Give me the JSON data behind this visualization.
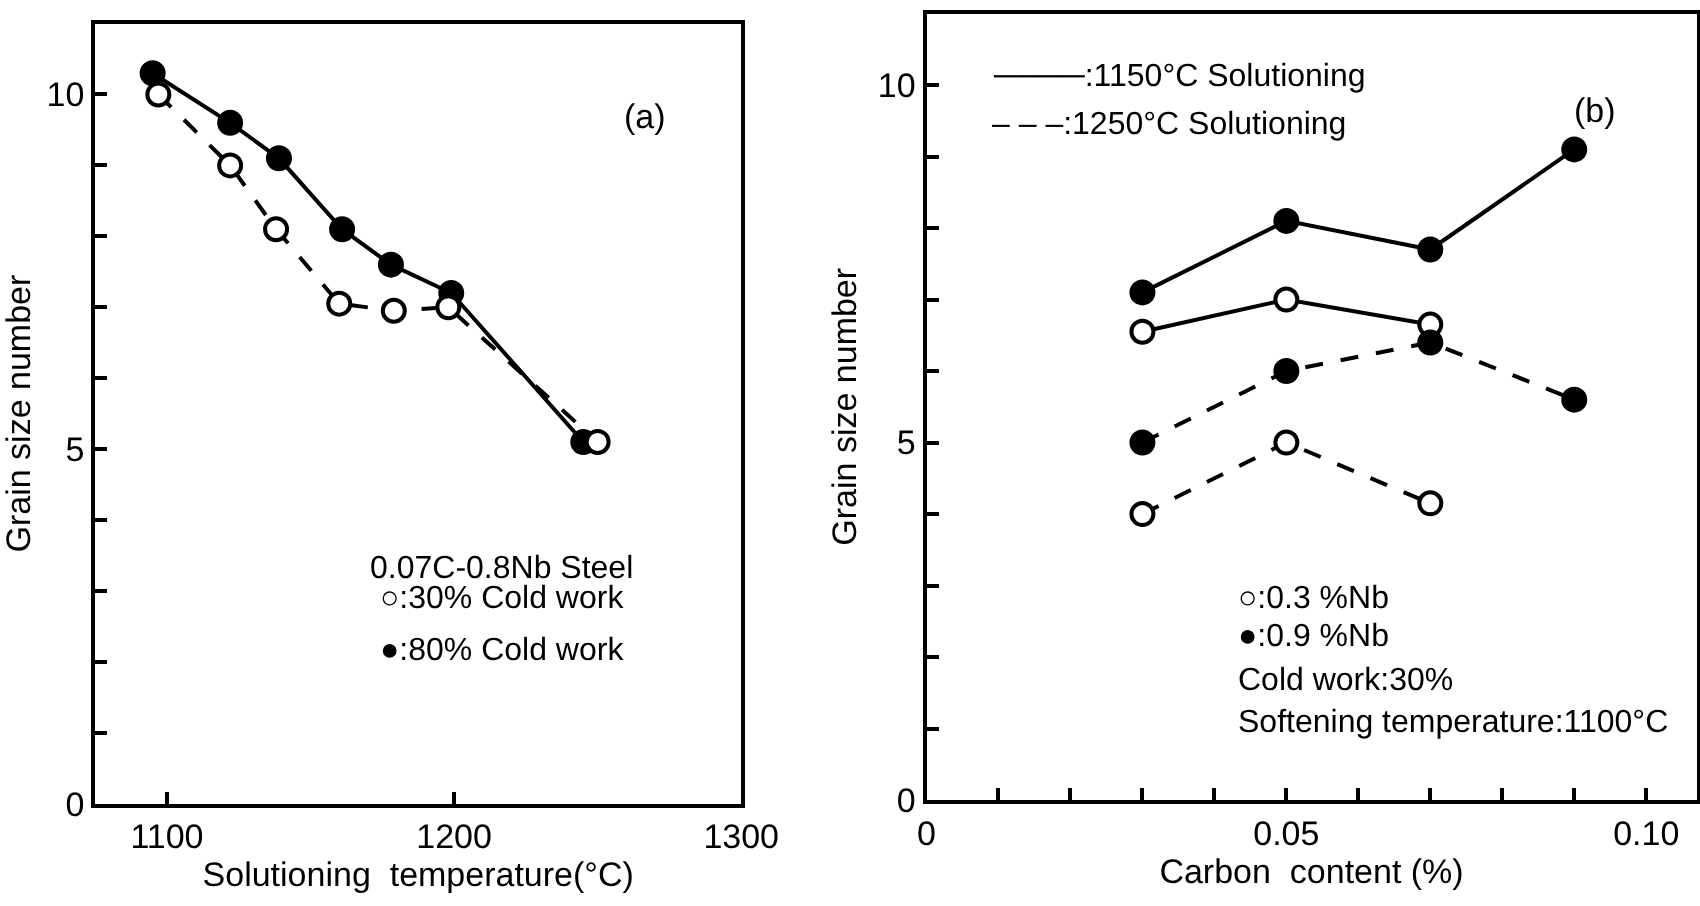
{
  "chart_data": [
    {
      "type": "line",
      "title": "(a)",
      "xlabel": "Solutioning  temperature(°C)",
      "ylabel": "Grain size number",
      "xlim": [
        1075,
        1300
      ],
      "xticks": [
        1100,
        1200,
        1300
      ],
      "ylim": [
        0,
        11
      ],
      "yticks": [
        0,
        {
          "value": 1,
          "label": null
        },
        {
          "value": 2,
          "label": null
        },
        {
          "value": 3,
          "label": null
        },
        {
          "value": 4,
          "label": null
        },
        5,
        {
          "value": 6,
          "label": null
        },
        {
          "value": 7,
          "label": null
        },
        {
          "value": 8,
          "label": null
        },
        {
          "value": 9,
          "label": null
        },
        10
      ],
      "annotations": [
        "0.07C-0.8Nb Steel",
        "○:30% Cold work",
        "●:80% Cold work"
      ],
      "series": [
        {
          "color": "#000000",
          "line_style": "solid",
          "marker": "circle",
          "x": [
            1095,
            1122,
            1139,
            1161,
            1178,
            1199,
            1245
          ],
          "values": [
            10.3,
            9.6,
            9.1,
            8.1,
            7.6,
            7.2,
            5.1
          ]
        },
        {
          "color": "#000000",
          "line_style": "dashed",
          "marker": "circle-open",
          "x": [
            1097,
            1122,
            1138,
            1160,
            1179,
            1198,
            1250
          ],
          "values": [
            10.0,
            9.0,
            8.1,
            7.05,
            6.95,
            7.0,
            5.1
          ]
        }
      ]
    },
    {
      "type": "line",
      "title": "(b)",
      "xlabel": "Carbon  content (%)",
      "ylabel": "Grain size number",
      "xlim": [
        0,
        0.107
      ],
      "xticks": [
        0,
        {
          "value": 0.01,
          "label": null
        },
        {
          "value": 0.02,
          "label": null
        },
        {
          "value": 0.03,
          "label": null
        },
        {
          "value": 0.04,
          "label": null
        },
        0.05,
        {
          "value": 0.06,
          "label": null
        },
        {
          "value": 0.07,
          "label": null
        },
        {
          "value": 0.08,
          "label": null
        },
        {
          "value": 0.09,
          "label": null
        },
        {
          "value": 0.1,
          "label": "0.10"
        }
      ],
      "ylim": [
        0,
        11
      ],
      "yticks": [
        0,
        {
          "value": 1,
          "label": null
        },
        {
          "value": 2,
          "label": null
        },
        {
          "value": 3,
          "label": null
        },
        {
          "value": 4,
          "label": null
        },
        5,
        {
          "value": 6,
          "label": null
        },
        {
          "value": 7,
          "label": null
        },
        {
          "value": 8,
          "label": null
        },
        {
          "value": 9,
          "label": null
        },
        10
      ],
      "annotations": [
        "────:1150°C Solutioning",
        "– – –:1250°C Solutioning",
        "○:0.3 %Nb",
        "●:0.9 %Nb",
        "Cold work:30%",
        "Softening temperature:1100°C"
      ],
      "series": [
        {
          "color": "#000000",
          "line_style": "solid",
          "marker": "circle",
          "x": [
            0.03,
            0.05,
            0.07,
            0.09
          ],
          "values": [
            7.1,
            8.1,
            7.7,
            9.1
          ]
        },
        {
          "color": "#000000",
          "line_style": "solid",
          "marker": "circle-open",
          "x": [
            0.03,
            0.05,
            0.07
          ],
          "values": [
            6.55,
            7.0,
            6.65
          ]
        },
        {
          "color": "#000000",
          "line_style": "dashed",
          "marker": "circle",
          "x": [
            0.03,
            0.05,
            0.07,
            0.09
          ],
          "values": [
            5.0,
            6.0,
            6.4,
            5.6
          ]
        },
        {
          "color": "#000000",
          "line_style": "dashed",
          "marker": "circle-open",
          "x": [
            0.03,
            0.05,
            0.07
          ],
          "values": [
            4.0,
            5.0,
            4.15
          ]
        }
      ]
    }
  ]
}
